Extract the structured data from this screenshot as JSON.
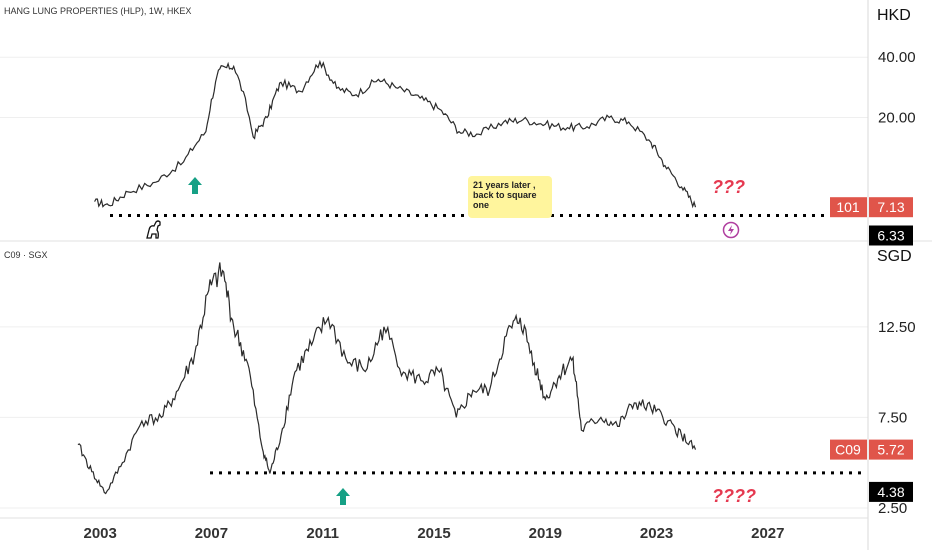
{
  "chart_data": [
    {
      "type": "line",
      "title": "HANG LUNG PROPERTIES (HLP), 1W, HKEX",
      "currency": "HKD",
      "y_scale": "log",
      "y_ticks": [
        "40.00",
        "20.00"
      ],
      "ylim": [
        5.0,
        60.0
      ],
      "x_ticks": [
        "2003",
        "2007",
        "2011",
        "2015",
        "2019",
        "2023",
        "2027"
      ],
      "xlim": [
        1999.4,
        2030.6
      ],
      "series": [
        {
          "name": "101",
          "x": [
            2002.8,
            2003.3,
            2004.0,
            2005.0,
            2006.0,
            2006.8,
            2007.3,
            2007.8,
            2008.5,
            2009.0,
            2009.5,
            2010.2,
            2010.9,
            2011.5,
            2012.2,
            2013.0,
            2013.7,
            2014.5,
            2015.2,
            2015.9,
            2016.6,
            2017.5,
            2018.2,
            2019.0,
            2019.8,
            2020.5,
            2021.3,
            2022.0,
            2022.8,
            2023.3,
            2023.9,
            2024.4
          ],
          "values": [
            7.6,
            7.3,
            8.5,
            9.5,
            12.0,
            17.0,
            35.0,
            36.0,
            16.0,
            20.0,
            30.0,
            27.0,
            38.0,
            28.0,
            26.0,
            31.0,
            28.0,
            25.0,
            22.0,
            17.0,
            16.5,
            19.0,
            19.5,
            18.5,
            17.8,
            18.0,
            20.0,
            19.0,
            15.0,
            11.5,
            9.0,
            7.13
          ]
        }
      ],
      "current_label": "101",
      "current_value": "7.13",
      "level_label": "6.33",
      "level": 6.33,
      "annotation": "???"
    },
    {
      "type": "line",
      "title": "C09 · SGX",
      "currency": "SGD",
      "y_ticks": [
        "12.50",
        "7.50",
        "2.50"
      ],
      "ylim": [
        2.0,
        16.3
      ],
      "x_ticks": [
        "2003",
        "2007",
        "2011",
        "2015",
        "2019",
        "2023",
        "2027"
      ],
      "xlim": [
        1999.4,
        2030.6
      ],
      "series": [
        {
          "name": "C09",
          "x": [
            2002.2,
            2002.7,
            2003.2,
            2003.8,
            2004.5,
            2005.2,
            2005.8,
            2006.4,
            2006.9,
            2007.4,
            2007.8,
            2008.3,
            2008.8,
            2009.1,
            2009.5,
            2010.0,
            2010.6,
            2011.2,
            2011.9,
            2012.6,
            2013.2,
            2013.9,
            2014.6,
            2015.2,
            2015.8,
            2016.4,
            2017.0,
            2017.6,
            2018.1,
            2018.6,
            2019.0,
            2019.5,
            2020.0,
            2020.3,
            2021.0,
            2021.6,
            2022.2,
            2022.8,
            2023.4,
            2023.9,
            2024.4
          ],
          "values": [
            6.0,
            4.5,
            3.3,
            5.0,
            7.3,
            7.5,
            9.0,
            11.0,
            14.5,
            15.6,
            12.5,
            10.5,
            6.0,
            4.4,
            6.5,
            10.0,
            11.5,
            13.0,
            10.5,
            10.2,
            12.5,
            10.0,
            9.5,
            10.0,
            7.5,
            9.0,
            9.0,
            12.0,
            13.0,
            10.5,
            8.5,
            9.8,
            10.8,
            6.8,
            7.5,
            7.0,
            8.3,
            8.0,
            7.3,
            6.5,
            5.72
          ]
        }
      ],
      "current_label": "C09",
      "current_value": "5.72",
      "level_label": "4.38",
      "level": 4.38,
      "annotation": "????"
    }
  ],
  "note_text": "21 years later , back to square one",
  "colors": {
    "line": "#2b2b2b",
    "badge": "#e0554a",
    "level_badge": "#000000",
    "arrow": "#16a085",
    "question": "#e53950",
    "note_bg": "#fff59d",
    "grid": "#e8e8e8"
  },
  "icons": [
    "dino-icon",
    "lightning-icon",
    "up-arrow-icon"
  ]
}
